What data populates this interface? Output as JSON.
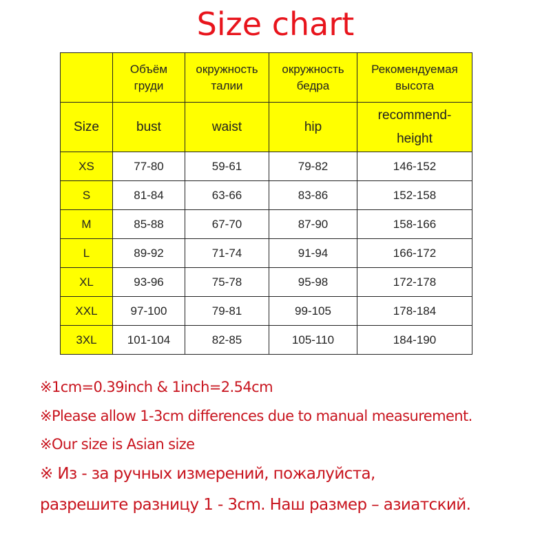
{
  "title": "Size chart",
  "colors": {
    "title": "#e8141c",
    "notes": "#c8141e",
    "header_bg": "#ffff00"
  },
  "table": {
    "header_ru": [
      "",
      "Объём\nгруди",
      "окружность\nталии",
      "окружность\nбедра",
      "Рекомендуемая\nвысота"
    ],
    "header_en": [
      "Size",
      "bust",
      "waist",
      "hip",
      "recommend-\nheight"
    ],
    "rows": [
      [
        "XS",
        "77-80",
        "59-61",
        "79-82",
        "146-152"
      ],
      [
        "S",
        "81-84",
        "63-66",
        "83-86",
        "152-158"
      ],
      [
        "M",
        "85-88",
        "67-70",
        "87-90",
        "158-166"
      ],
      [
        "L",
        "89-92",
        "71-74",
        "91-94",
        "166-172"
      ],
      [
        "XL",
        "93-96",
        "75-78",
        "95-98",
        "172-178"
      ],
      [
        "XXL",
        "97-100",
        "79-81",
        "99-105",
        "178-184"
      ],
      [
        "3XL",
        "101-104",
        "82-85",
        "105-110",
        "184-190"
      ]
    ]
  },
  "notes": [
    "※1cm=0.39inch & 1inch=2.54cm",
    "※Please allow 1-3cm differences due to manual measurement.",
    "※Our size is Asian size",
    "※ Из - за ручных измерений, пожалуйста,",
    "разрешите разницу 1 - 3cm. Наш размер – азиатский."
  ]
}
